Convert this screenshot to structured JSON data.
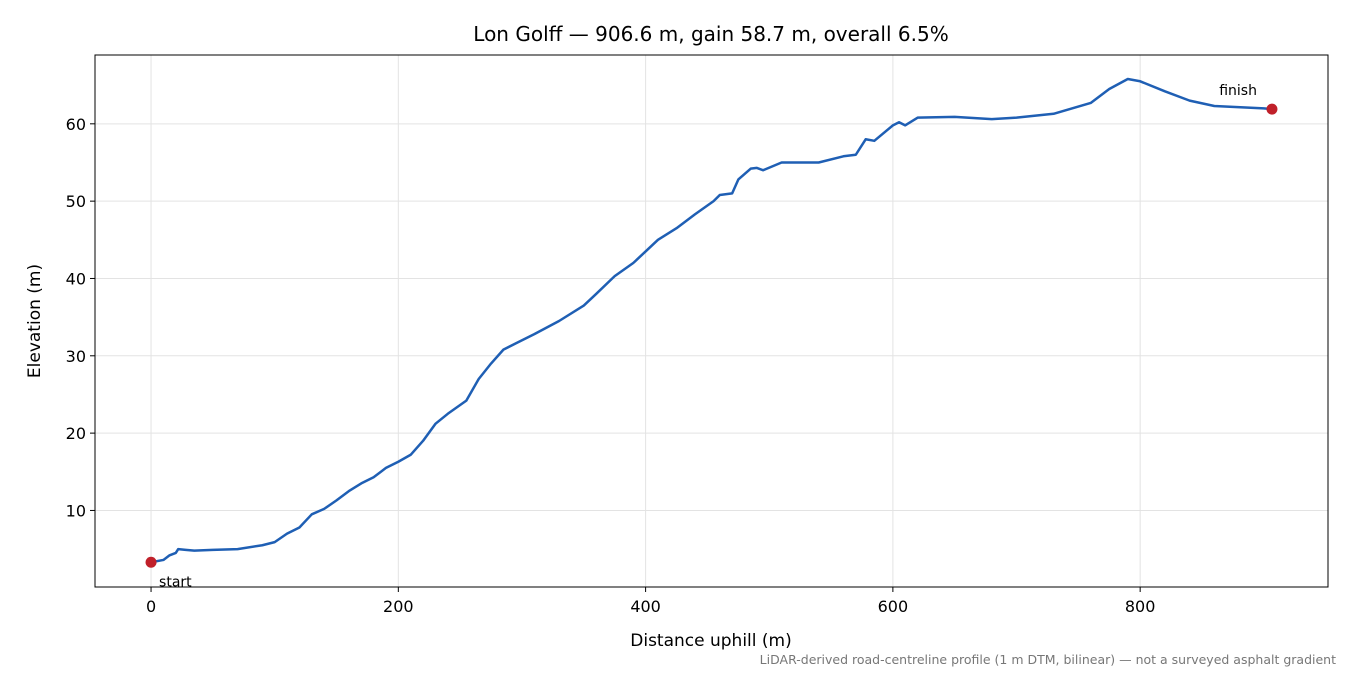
{
  "chart_data": {
    "type": "line",
    "title": "Lon Golff — 906.6 m, gain 58.7 m, overall 6.5%",
    "xlabel": "Distance uphill (m)",
    "ylabel": "Elevation (m)",
    "note": "LiDAR-derived road-centreline profile (1 m DTM, bilinear) — not a surveyed asphalt gradient",
    "x": [
      0,
      10,
      15,
      20,
      22,
      28,
      35,
      50,
      70,
      90,
      100,
      110,
      120,
      130,
      140,
      150,
      160,
      170,
      180,
      190,
      200,
      210,
      220,
      230,
      240,
      255,
      265,
      275,
      285,
      295,
      310,
      330,
      350,
      360,
      375,
      390,
      400,
      410,
      425,
      440,
      455,
      460,
      470,
      475,
      485,
      490,
      495,
      510,
      540,
      560,
      570,
      578,
      585,
      600,
      605,
      610,
      620,
      650,
      680,
      700,
      730,
      760,
      775,
      790,
      800,
      820,
      840,
      860,
      900,
      906.6
    ],
    "series": [
      {
        "color": "#1f5fb4",
        "values": [
          3.3,
          3.6,
          4.2,
          4.5,
          5.0,
          4.9,
          4.8,
          4.9,
          5.0,
          5.5,
          5.9,
          7.0,
          7.8,
          9.5,
          10.2,
          11.3,
          12.5,
          13.5,
          14.3,
          15.5,
          16.3,
          17.2,
          19.0,
          21.2,
          22.5,
          24.2,
          27.0,
          29.0,
          30.8,
          31.6,
          32.8,
          34.5,
          36.5,
          38.0,
          40.3,
          42.0,
          43.5,
          45.0,
          46.5,
          48.3,
          50.0,
          50.8,
          51.0,
          52.8,
          54.2,
          54.3,
          54.0,
          55.0,
          55.0,
          55.8,
          56.0,
          58.0,
          57.8,
          59.8,
          60.2,
          59.8,
          60.8,
          60.9,
          60.6,
          60.8,
          61.3,
          62.7,
          64.5,
          65.8,
          65.5,
          64.2,
          63.0,
          62.3,
          62.0,
          61.9
        ]
      }
    ],
    "annotations": [
      {
        "text": "start",
        "x": 0,
        "y": 3.3,
        "color": "#c0202a"
      },
      {
        "text": "finish",
        "x": 906.6,
        "y": 61.9,
        "color": "#c0202a"
      }
    ],
    "xlim": [
      -45.33,
      951.93
    ],
    "ylim": [
      0.1,
      68.9
    ],
    "xticks": [
      0,
      200,
      400,
      600,
      800
    ],
    "yticks": [
      10,
      20,
      30,
      40,
      50,
      60
    ],
    "grid": true
  }
}
